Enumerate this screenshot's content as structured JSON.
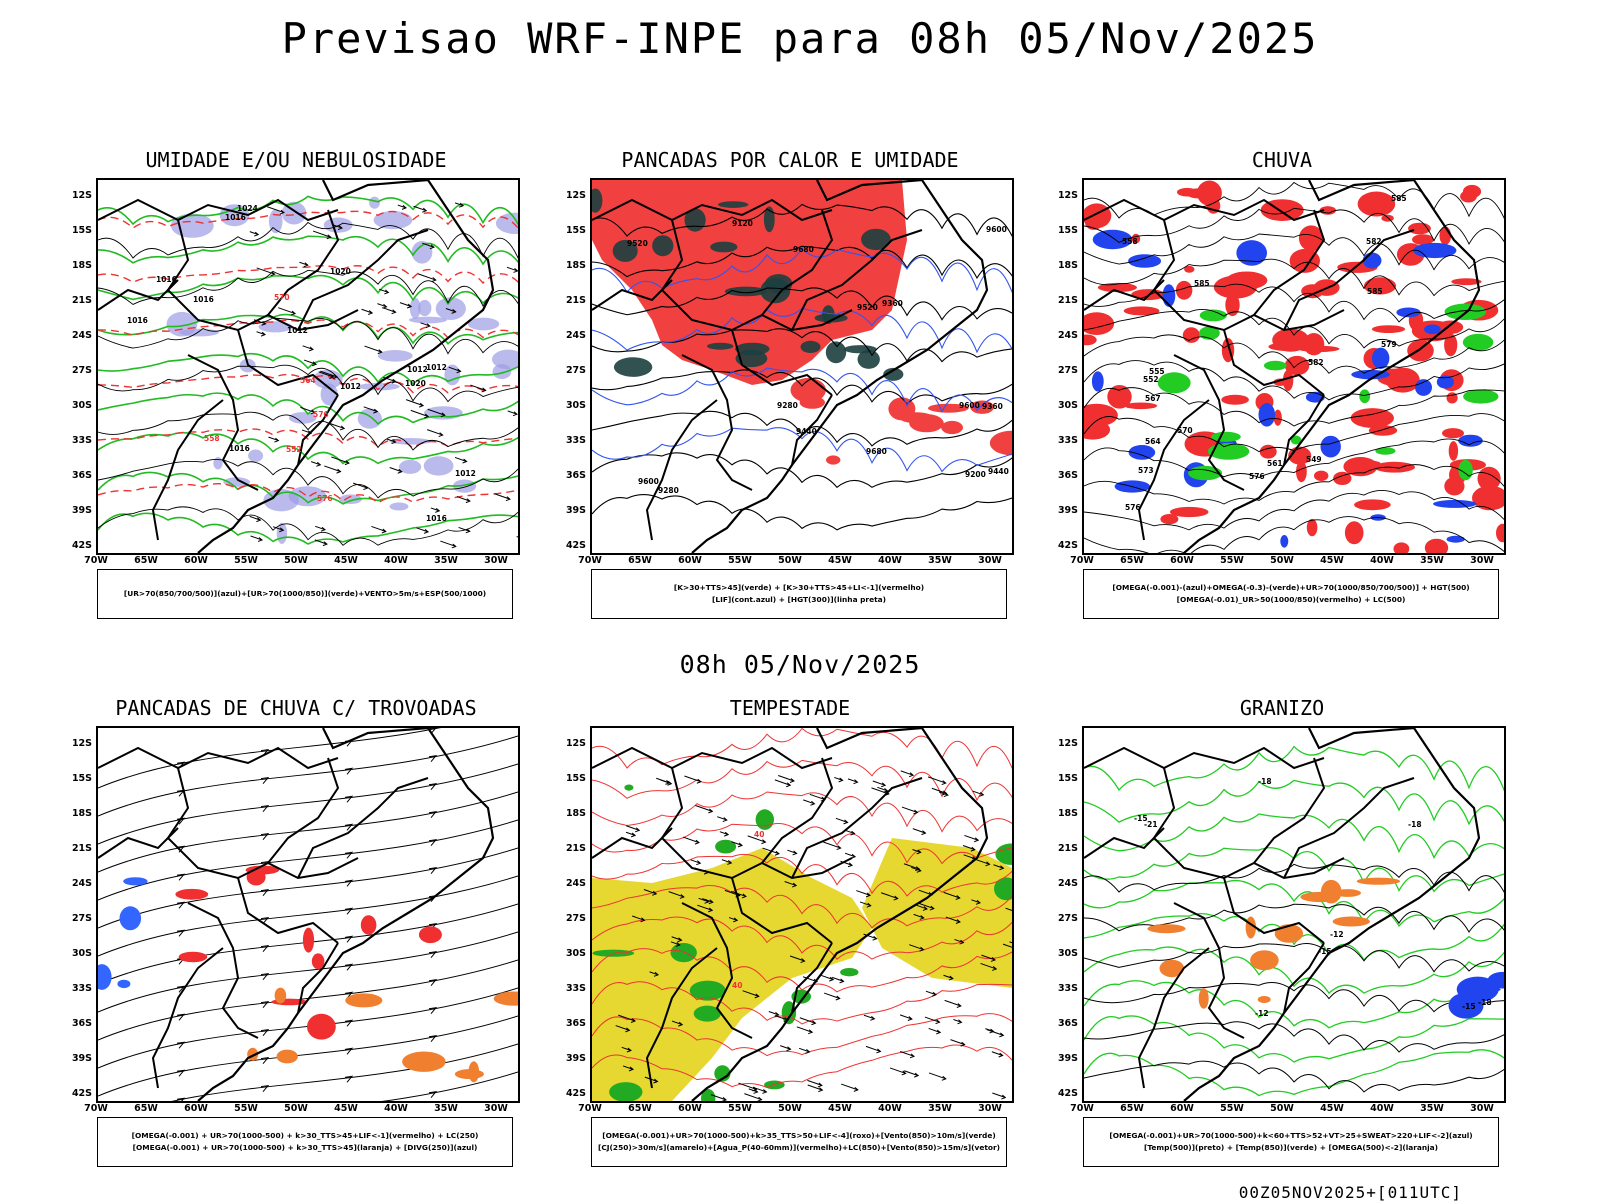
{
  "title": "Previsao WRF-INPE  para 08h 05/Nov/2025",
  "mid_time": "08h 05/Nov/2025",
  "footer": "00Z05NOV2025+[011UTC]",
  "axes": {
    "lat": [
      "12S",
      "15S",
      "18S",
      "21S",
      "24S",
      "27S",
      "30S",
      "33S",
      "36S",
      "39S",
      "42S"
    ],
    "lon": [
      "70W",
      "65W",
      "60W",
      "55W",
      "50W",
      "45W",
      "40W",
      "35W",
      "30W"
    ]
  },
  "panels": [
    {
      "title": "UMIDADE E/OU NEBULOSIDADE",
      "legend": [
        "[UR>70(850/700/500)](azul)+[UR>70(1000/850)](verde)+VENTO>5m/s+ESP(500/1000)"
      ],
      "labels": [
        "1016",
        "1016",
        "1012",
        "1016",
        "1016",
        "1020",
        "1016",
        "1012",
        "1012",
        "1020",
        "1024",
        "1012",
        "1016",
        "1012",
        "576",
        "576",
        "570",
        "564",
        "558",
        "552"
      ]
    },
    {
      "title": "PANCADAS POR CALOR E UMIDADE",
      "legend": [
        "[K>30+TTS>45](verde) + [K>30+TTS>45+LI<-1](vermelho)",
        "[LIF](cont.azul) + [HGT(300)](linha preta)"
      ],
      "labels": [
        "9680",
        "9680",
        "9600",
        "9600",
        "9600",
        "9520",
        "9520",
        "9440",
        "9440",
        "9360",
        "9360",
        "9280",
        "9280",
        "9200",
        "9120"
      ]
    },
    {
      "title": "CHUVA",
      "legend": [
        "[OMEGA(-0.001)-(azul)+OMEGA(-0.3)-(verde)+UR>70(1000/850/700/500)] + HGT(500)",
        "[OMEGA(-0.01)_UR>50(1000/850)(vermelho) + LC(500)"
      ],
      "labels": [
        "585",
        "585",
        "585",
        "582",
        "582",
        "579",
        "576",
        "576",
        "573",
        "570",
        "567",
        "564",
        "561",
        "558",
        "555",
        "552",
        "549"
      ]
    },
    {
      "title": "PANCADAS DE CHUVA C/ TROVOADAS",
      "legend": [
        "[OMEGA(-0.001) + UR>70(1000-500) + k>30_TTS>45+LIF<-1](vermelho) + LC(250)",
        "[OMEGA(-0.001) + UR>70(1000-500) + k>30_TTS>45](laranja) + [DIVG(250)](azul)"
      ],
      "labels": []
    },
    {
      "title": "TEMPESTADE",
      "legend": [
        "[OMEGA(-0.001)+UR>70(1000-500)+k>35_TTS>50+LIF<-4](roxo)+[Vento(850)>10m/s](verde)",
        "[CJ(250)>30m/s](amarelo)+[Agua_P(40-60mm)](vermelho)+LC(850)+[Vento(850)>15m/s](vetor)"
      ],
      "labels": [
        "40",
        "40"
      ]
    },
    {
      "title": "GRANIZO",
      "legend": [
        "[OMEGA(-0.001)+UR>70(1000-500)+k<60+TTS>52+VT>25+SWEAT>220+LIF<-2](azul)",
        "[Temp(500)](preto) + [Temp(850)](verde) + [OMEGA(500)<-2](laranja)"
      ],
      "labels": [
        "-12",
        "-15",
        "-15",
        "-18",
        "-18",
        "-18",
        "-21",
        "-15",
        "-12"
      ]
    }
  ]
}
